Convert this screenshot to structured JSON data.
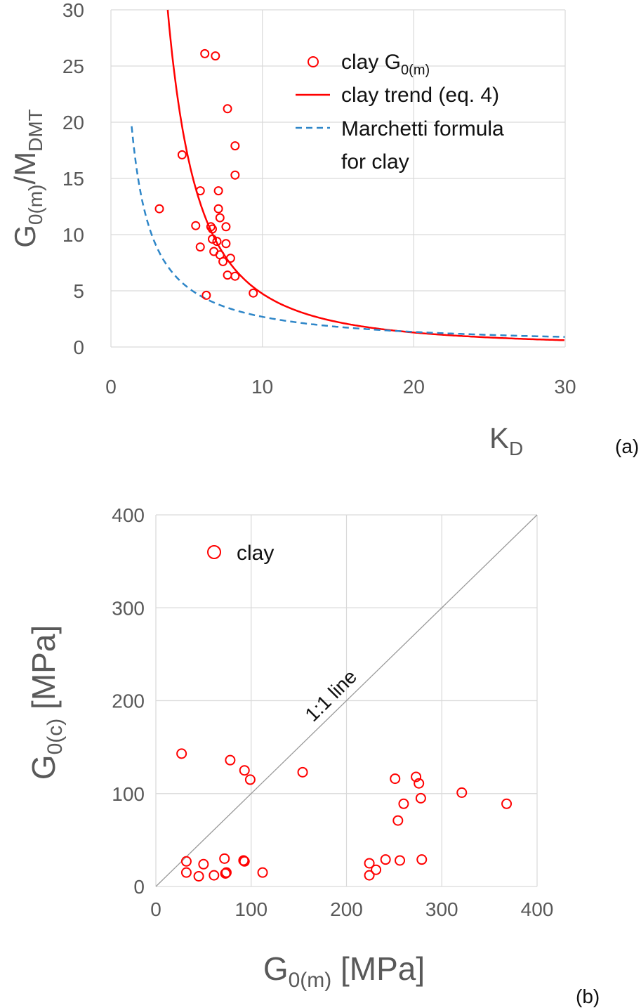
{
  "colors": {
    "points": "#ff0000",
    "trend": "#ff0000",
    "marchetti": "#2e86c8",
    "one_to_one": "#999999",
    "grid": "#d9d9d9",
    "text": "#595959"
  },
  "chart_data": [
    {
      "type": "scatter",
      "panel_label": "(a)",
      "xlabel": {
        "main": "K",
        "sub": "D"
      },
      "ylabel": {
        "main": "G",
        "sub": "0(m)",
        "main2": "/M",
        "sub2": "DMT"
      },
      "xlim": [
        0,
        30
      ],
      "ylim": [
        0,
        30
      ],
      "xticks": [
        "0",
        "10",
        "20",
        "30"
      ],
      "yticks": [
        "0",
        "5",
        "10",
        "15",
        "20",
        "25",
        "30"
      ],
      "grid": true,
      "legend_placement": "top-right",
      "legend": {
        "points": {
          "main": "clay G",
          "sub": "0(m)"
        },
        "trend": "clay trend (eq. 4)",
        "marchetti": [
          "Marchetti formula",
          "for clay"
        ]
      },
      "series": [
        {
          "name": "clay G0(m)",
          "kind": "scatter",
          "points": [
            [
              6.2,
              26.1
            ],
            [
              6.9,
              25.9
            ],
            [
              7.7,
              21.2
            ],
            [
              8.2,
              17.9
            ],
            [
              4.7,
              17.1
            ],
            [
              8.2,
              15.3
            ],
            [
              5.9,
              13.9
            ],
            [
              7.1,
              13.9
            ],
            [
              3.2,
              12.3
            ],
            [
              7.1,
              12.3
            ],
            [
              7.2,
              11.5
            ],
            [
              5.6,
              10.8
            ],
            [
              6.6,
              10.7
            ],
            [
              6.7,
              10.5
            ],
            [
              7.6,
              10.7
            ],
            [
              6.7,
              9.6
            ],
            [
              7.0,
              9.4
            ],
            [
              7.6,
              9.2
            ],
            [
              5.9,
              8.9
            ],
            [
              6.8,
              8.5
            ],
            [
              7.2,
              8.2
            ],
            [
              7.4,
              7.6
            ],
            [
              7.9,
              7.9
            ],
            [
              7.7,
              6.4
            ],
            [
              8.2,
              6.3
            ],
            [
              9.4,
              4.8
            ],
            [
              6.3,
              4.6
            ]
          ]
        },
        {
          "name": "clay trend (eq. 4)",
          "kind": "line",
          "formula": "G0(m)/MDMT = 360 * KD^-1.88",
          "x_range": [
            3.75,
            30
          ]
        },
        {
          "name": "Marchetti formula for clay",
          "kind": "dashed-line",
          "formula": "G0(m)/MDMT = 26.9 / KD",
          "x_range": [
            1.37,
            30
          ]
        }
      ]
    },
    {
      "type": "scatter",
      "panel_label": "(b)",
      "xlabel": {
        "main": "G",
        "sub": "0(m)",
        "main2": " [MPa]"
      },
      "ylabel": {
        "main": "G",
        "sub": "0(c)",
        "main2": " [MPa]"
      },
      "xlim": [
        0,
        400
      ],
      "ylim": [
        0,
        400
      ],
      "xticks": [
        "0",
        "100",
        "200",
        "300",
        "400"
      ],
      "yticks": [
        "0",
        "100",
        "200",
        "300",
        "400"
      ],
      "grid": true,
      "legend_placement": "top-left",
      "legend": {
        "points": "clay"
      },
      "annotation": "1:1 line",
      "series": [
        {
          "name": "clay",
          "kind": "scatter",
          "points": [
            [
              27,
              143
            ],
            [
              78,
              136
            ],
            [
              93,
              125
            ],
            [
              99,
              115
            ],
            [
              154,
              123
            ],
            [
              251,
              116
            ],
            [
              273,
              118
            ],
            [
              276,
              111
            ],
            [
              321,
              101
            ],
            [
              278,
              95
            ],
            [
              260,
              89
            ],
            [
              368,
              89
            ],
            [
              254,
              71
            ],
            [
              32,
              27
            ],
            [
              50,
              24
            ],
            [
              72,
              30
            ],
            [
              92,
              28
            ],
            [
              93,
              27
            ],
            [
              32,
              15
            ],
            [
              45,
              11
            ],
            [
              61,
              12
            ],
            [
              73,
              14
            ],
            [
              74,
              15
            ],
            [
              112,
              15
            ],
            [
              224,
              25
            ],
            [
              241,
              29
            ],
            [
              256,
              28
            ],
            [
              279,
              29
            ],
            [
              231,
              18
            ],
            [
              224,
              12
            ]
          ]
        },
        {
          "name": "1:1 line",
          "kind": "line",
          "points": [
            [
              0,
              0
            ],
            [
              400,
              400
            ]
          ]
        }
      ]
    }
  ]
}
